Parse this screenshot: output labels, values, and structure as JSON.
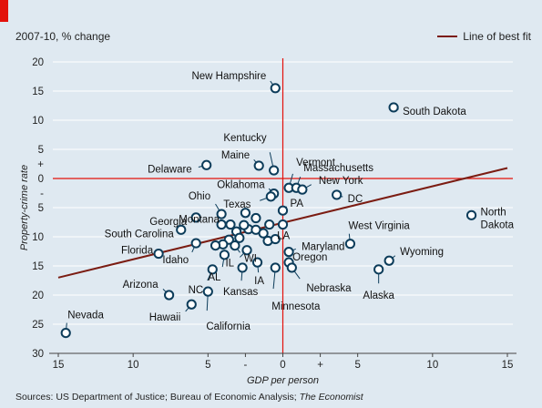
{
  "header": {
    "subtitle": "2007-10, % change",
    "legend_label": "Line of best fit"
  },
  "source": {
    "prefix": "Sources: US Department of Justice; Bureau of Economic Analysis; ",
    "italic": "The Economist"
  },
  "colors": {
    "background": "#dfe9f1",
    "grid": "#ffffff",
    "zero_line": "#e3120b",
    "fit_line": "#7b1c12",
    "point_stroke": "#0c3c5a",
    "point_fill": "#ffffff",
    "leader": "#0c3c5a"
  },
  "chart_data": {
    "type": "scatter",
    "xlabel": "GDP per person",
    "ylabel": "Property-crime rate",
    "xlim": [
      15,
      -15
    ],
    "ylim": [
      30,
      -20
    ],
    "x_reversed": true,
    "y_reversed": true,
    "x_ticks": [
      {
        "value": 15,
        "label": "15"
      },
      {
        "value": 10,
        "label": "10"
      },
      {
        "value": 5,
        "label": "5"
      },
      {
        "value": 2.5,
        "label": "-"
      },
      {
        "value": 0,
        "label": "0"
      },
      {
        "value": -2.5,
        "label": "+"
      },
      {
        "value": -5,
        "label": "5"
      },
      {
        "value": -10,
        "label": "10"
      },
      {
        "value": -15,
        "label": "15"
      }
    ],
    "y_ticks": [
      {
        "value": -20,
        "label": "20"
      },
      {
        "value": -15,
        "label": "15"
      },
      {
        "value": -10,
        "label": "10"
      },
      {
        "value": -5,
        "label": "5"
      },
      {
        "value": -2.5,
        "label": "+"
      },
      {
        "value": 0,
        "label": "0"
      },
      {
        "value": 2.5,
        "label": "-"
      },
      {
        "value": 5,
        "label": "5"
      },
      {
        "value": 10,
        "label": "10"
      },
      {
        "value": 15,
        "label": "15"
      },
      {
        "value": 20,
        "label": "20"
      },
      {
        "value": 25,
        "label": "25"
      },
      {
        "value": 30,
        "label": "30"
      }
    ],
    "grid": true,
    "legend": "top-right",
    "fit_line": {
      "x": [
        15,
        -15
      ],
      "y": [
        17,
        -1.8
      ]
    },
    "points": [
      {
        "x": 0.5,
        "y": -15.5,
        "label": "New Hampshire"
      },
      {
        "x": -7.4,
        "y": -12.2,
        "label": "South Dakota"
      },
      {
        "x": 0.6,
        "y": -1.4,
        "label": "Kentucky"
      },
      {
        "x": 1.6,
        "y": -2.2,
        "label": "Maine"
      },
      {
        "x": -0.4,
        "y": 1.6,
        "label": "Vermont"
      },
      {
        "x": -0.9,
        "y": 1.6,
        "label": "Massachusetts"
      },
      {
        "x": -1.3,
        "y": 1.9,
        "label": "New York"
      },
      {
        "x": 5.1,
        "y": -2.3,
        "label": "Delaware"
      },
      {
        "x": 0.6,
        "y": 2.6,
        "label": "Oklahoma"
      },
      {
        "x": 0.8,
        "y": 3.1,
        "label": "Texas"
      },
      {
        "x": -3.6,
        "y": 2.8,
        "label": "DC"
      },
      {
        "x": 0,
        "y": 5.5,
        "label": "PA"
      },
      {
        "x": -12.6,
        "y": 6.3,
        "label": "North Dakota"
      },
      {
        "x": 4.1,
        "y": 6.1,
        "label": "Ohio"
      },
      {
        "x": 3.5,
        "y": 7.9,
        "label": "Montana"
      },
      {
        "x": 5.8,
        "y": 6.7,
        "label": "Georgia"
      },
      {
        "x": 2.5,
        "y": 5.9,
        "label": ""
      },
      {
        "x": 1.8,
        "y": 6.8,
        "label": ""
      },
      {
        "x": 4.1,
        "y": 7.9,
        "label": ""
      },
      {
        "x": 6.8,
        "y": 8.8,
        "label": "South Carolina"
      },
      {
        "x": 3.1,
        "y": 9.1,
        "label": ""
      },
      {
        "x": 2.3,
        "y": 8.7,
        "label": ""
      },
      {
        "x": 1.8,
        "y": 8.8,
        "label": ""
      },
      {
        "x": 2.6,
        "y": 8.0,
        "label": ""
      },
      {
        "x": 0.9,
        "y": 7.9,
        "label": ""
      },
      {
        "x": 0,
        "y": 7.9,
        "label": ""
      },
      {
        "x": 1.3,
        "y": 9.4,
        "label": ""
      },
      {
        "x": 1.0,
        "y": 10.7,
        "label": "LA"
      },
      {
        "x": 0.5,
        "y": 10.4,
        "label": ""
      },
      {
        "x": 3.6,
        "y": 10.5,
        "label": ""
      },
      {
        "x": 4.0,
        "y": 11.3,
        "label": ""
      },
      {
        "x": 4.5,
        "y": 11.5,
        "label": ""
      },
      {
        "x": 2.9,
        "y": 10.2,
        "label": ""
      },
      {
        "x": 3.2,
        "y": 11.5,
        "label": "WI"
      },
      {
        "x": 5.8,
        "y": 11.1,
        "label": "Idaho"
      },
      {
        "x": 8.3,
        "y": 12.9,
        "label": "Florida"
      },
      {
        "x": -4.5,
        "y": 11.2,
        "label": "West Virginia"
      },
      {
        "x": -0.4,
        "y": 12.6,
        "label": "Maryland"
      },
      {
        "x": 2.4,
        "y": 12.3,
        "label": "IL"
      },
      {
        "x": 3.9,
        "y": 13.1,
        "label": "AL"
      },
      {
        "x": -0.4,
        "y": 14.4,
        "label": "Oregon"
      },
      {
        "x": 1.7,
        "y": 14.4,
        "label": "IA"
      },
      {
        "x": 2.7,
        "y": 15.3,
        "label": "Kansas"
      },
      {
        "x": 4.7,
        "y": 15.6,
        "label": "NC"
      },
      {
        "x": -0.6,
        "y": 15.3,
        "label": "Nebraska"
      },
      {
        "x": 0.5,
        "y": 15.3,
        "label": "Minnesota"
      },
      {
        "x": -7.1,
        "y": 14.1,
        "label": "Wyoming"
      },
      {
        "x": -6.4,
        "y": 15.6,
        "label": "Alaska"
      },
      {
        "x": 7.6,
        "y": 20.0,
        "label": "Arizona"
      },
      {
        "x": 6.1,
        "y": 21.6,
        "label": "Hawaii"
      },
      {
        "x": 5.0,
        "y": 19.4,
        "label": "California"
      },
      {
        "x": 14.5,
        "y": 26.5,
        "label": "Nevada"
      }
    ]
  }
}
